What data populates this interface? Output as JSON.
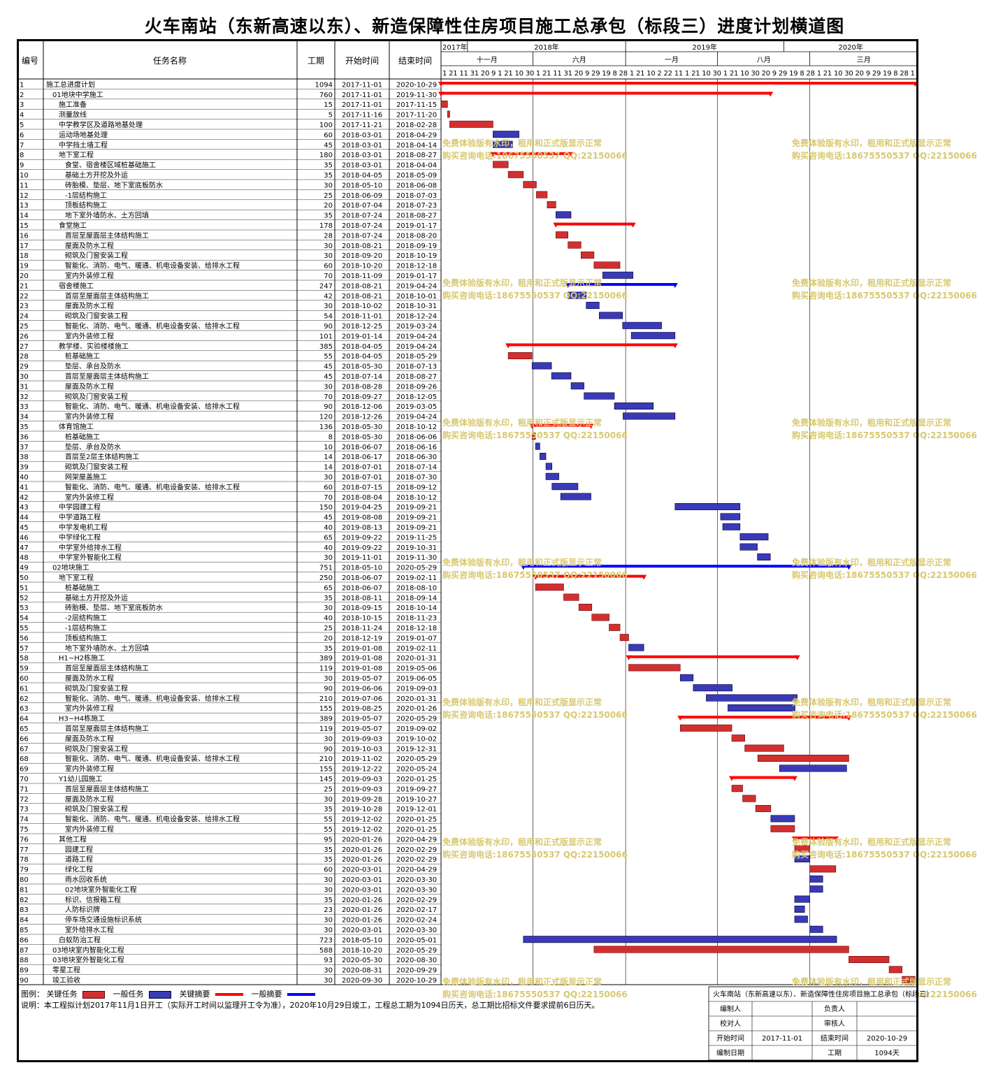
{
  "title": "火车南站（东新高速以东）、新造保障性住房项目施工总承包（标段三）进度计划横道图",
  "columns": {
    "id": "编号",
    "name": "任务名称",
    "duration": "工期",
    "start": "开始时间",
    "end": "结束时间"
  },
  "timeline": {
    "years": [
      {
        "label": "2017年",
        "date": "2017-11-01"
      },
      {
        "label": "2018年",
        "date": "2018-01-01"
      },
      {
        "label": "2019年",
        "date": "2019-01-01"
      },
      {
        "label": "2020年",
        "date": "2020-01-01"
      }
    ],
    "quarters": [
      {
        "label": "十一月",
        "date": "2017-11-01"
      },
      {
        "label": "六月",
        "date": "2018-06-01"
      },
      {
        "label": "一月",
        "date": "2019-01-01"
      },
      {
        "label": "八月",
        "date": "2019-08-01"
      },
      {
        "label": "三月",
        "date": "2020-03-01"
      }
    ],
    "day_ticks": "1 21 11 31 20 9 1 21 10 30 1 21 11 31 20 9 29 19 8 28 1 21 10 2 22 11 1 21 10 30 1 21 10 30 20 9 29 19 8 28 1 21 10 30 20 9 29 19 8 28 1"
  },
  "chart_data": {
    "type": "gantt",
    "x_range": [
      "2017-11-01",
      "2020-11-05"
    ],
    "series": [
      {
        "name": "关键任务",
        "color": "#d23030"
      },
      {
        "name": "一般任务",
        "color": "#3a3ab8"
      },
      {
        "name": "关键摘要",
        "color": "#ff0000"
      },
      {
        "name": "一般摘要",
        "color": "#0000ff"
      }
    ],
    "tasks": [
      [
        "1",
        "施工总进度计划",
        "1094",
        "2017-11-01",
        "2020-10-29",
        0,
        "s",
        "r"
      ],
      [
        "2",
        "01地块中学施工",
        "760",
        "2017-11-01",
        "2019-11-30",
        1,
        "s",
        "r"
      ],
      [
        "3",
        "施工准备",
        "15",
        "2017-11-01",
        "2017-11-15",
        2,
        "c",
        "r"
      ],
      [
        "4",
        "测量放线",
        "5",
        "2017-11-16",
        "2017-11-20",
        2,
        "c",
        "r"
      ],
      [
        "5",
        "中学教学区及道路地基处理",
        "100",
        "2017-11-21",
        "2018-02-28",
        2,
        "c",
        "r"
      ],
      [
        "6",
        "运动场地基处理",
        "60",
        "2018-03-01",
        "2018-04-29",
        2,
        "c",
        "b"
      ],
      [
        "7",
        "中学挡土墙工程",
        "45",
        "2018-03-01",
        "2018-04-14",
        2,
        "c",
        "b"
      ],
      [
        "8",
        "地下室工程",
        "180",
        "2018-03-01",
        "2018-08-27",
        2,
        "s",
        "r"
      ],
      [
        "9",
        "食堂、宿舍楼区域桩基础施工",
        "35",
        "2018-03-01",
        "2018-04-04",
        3,
        "c",
        "r"
      ],
      [
        "10",
        "基础土方开挖及外运",
        "35",
        "2018-04-05",
        "2018-05-09",
        3,
        "c",
        "r"
      ],
      [
        "11",
        "砖胎模、垫层、地下室底板防水",
        "30",
        "2018-05-10",
        "2018-06-08",
        3,
        "c",
        "r"
      ],
      [
        "12",
        "-1层结构施工",
        "25",
        "2018-06-09",
        "2018-07-03",
        3,
        "c",
        "r"
      ],
      [
        "13",
        "顶板结构施工",
        "20",
        "2018-07-04",
        "2018-07-23",
        3,
        "c",
        "r"
      ],
      [
        "14",
        "地下室外墙防水、土方回填",
        "35",
        "2018-07-24",
        "2018-08-27",
        3,
        "c",
        "b"
      ],
      [
        "15",
        "食堂施工",
        "178",
        "2018-07-24",
        "2019-01-17",
        2,
        "s",
        "r"
      ],
      [
        "16",
        "首层至屋面层主体结构施工",
        "28",
        "2018-07-24",
        "2018-08-20",
        3,
        "c",
        "r"
      ],
      [
        "17",
        "屋面及防水工程",
        "30",
        "2018-08-21",
        "2018-09-19",
        3,
        "c",
        "r"
      ],
      [
        "18",
        "砌筑及门窗安装工程",
        "30",
        "2018-09-20",
        "2018-10-19",
        3,
        "c",
        "r"
      ],
      [
        "19",
        "智能化、消防、电气、暖通、机电设备安装、给排水工程",
        "60",
        "2018-10-20",
        "2018-12-18",
        3,
        "c",
        "r"
      ],
      [
        "20",
        "室内外装修工程",
        "70",
        "2018-11-09",
        "2019-01-17",
        3,
        "c",
        "b"
      ],
      [
        "21",
        "宿舍楼施工",
        "247",
        "2018-08-21",
        "2019-04-24",
        2,
        "s",
        "b"
      ],
      [
        "22",
        "首层至屋面层主体结构施工",
        "42",
        "2018-08-21",
        "2018-10-01",
        3,
        "c",
        "b"
      ],
      [
        "23",
        "屋面及防水工程",
        "30",
        "2018-10-02",
        "2018-10-31",
        3,
        "c",
        "b"
      ],
      [
        "24",
        "砌筑及门窗安装工程",
        "54",
        "2018-11-01",
        "2018-12-24",
        3,
        "c",
        "b"
      ],
      [
        "25",
        "智能化、消防、电气、暖通、机电设备安装、给排水工程",
        "90",
        "2018-12-25",
        "2019-03-24",
        3,
        "c",
        "b"
      ],
      [
        "26",
        "室内外装修工程",
        "101",
        "2019-01-14",
        "2019-04-24",
        3,
        "c",
        "b"
      ],
      [
        "27",
        "教学楼、实验楼楼施工",
        "385",
        "2018-04-05",
        "2019-04-24",
        2,
        "s",
        "r"
      ],
      [
        "28",
        "桩基础施工",
        "55",
        "2018-04-05",
        "2018-05-29",
        3,
        "c",
        "r"
      ],
      [
        "29",
        "垫层、承台及防水",
        "45",
        "2018-05-30",
        "2018-07-13",
        3,
        "c",
        "b"
      ],
      [
        "30",
        "首层至屋面层主体结构施工",
        "45",
        "2018-07-14",
        "2018-08-27",
        3,
        "c",
        "b"
      ],
      [
        "31",
        "屋面及防水工程",
        "30",
        "2018-08-28",
        "2018-09-26",
        3,
        "c",
        "b"
      ],
      [
        "32",
        "砌筑及门窗安装工程",
        "70",
        "2018-09-27",
        "2018-12-05",
        3,
        "c",
        "b"
      ],
      [
        "33",
        "智能化、消防、电气、暖通、机电设备安装、给排水工程",
        "90",
        "2018-12-06",
        "2019-03-05",
        3,
        "c",
        "b"
      ],
      [
        "34",
        "室内外装修工程",
        "120",
        "2018-12-26",
        "2019-04-24",
        3,
        "c",
        "b"
      ],
      [
        "35",
        "体育馆施工",
        "136",
        "2018-05-30",
        "2018-10-12",
        2,
        "s",
        "r"
      ],
      [
        "36",
        "桩基础施工",
        "8",
        "2018-05-30",
        "2018-06-06",
        3,
        "c",
        "r"
      ],
      [
        "37",
        "垫层、承台及防水",
        "10",
        "2018-06-07",
        "2018-06-16",
        3,
        "c",
        "b"
      ],
      [
        "38",
        "首层至2层主体结构施工",
        "14",
        "2018-06-17",
        "2018-06-30",
        3,
        "c",
        "b"
      ],
      [
        "39",
        "砌筑及门窗安装工程",
        "14",
        "2018-07-01",
        "2018-07-14",
        3,
        "c",
        "b"
      ],
      [
        "40",
        "网架屋盖施工",
        "30",
        "2018-07-01",
        "2018-07-30",
        3,
        "c",
        "b"
      ],
      [
        "41",
        "智能化、消防、电气、暖通、机电设备安装、给排水工程",
        "60",
        "2018-07-15",
        "2018-09-12",
        3,
        "c",
        "b"
      ],
      [
        "42",
        "室内外装修工程",
        "70",
        "2018-08-04",
        "2018-10-12",
        3,
        "c",
        "b"
      ],
      [
        "43",
        "中学园建工程",
        "150",
        "2019-04-25",
        "2019-09-21",
        2,
        "c",
        "b"
      ],
      [
        "44",
        "中学道路工程",
        "45",
        "2019-08-08",
        "2019-09-21",
        2,
        "c",
        "b"
      ],
      [
        "45",
        "中学发电机工程",
        "40",
        "2019-08-13",
        "2019-09-21",
        2,
        "c",
        "b"
      ],
      [
        "46",
        "中学绿化工程",
        "65",
        "2019-09-22",
        "2019-11-25",
        2,
        "c",
        "b"
      ],
      [
        "47",
        "中学室外给排水工程",
        "40",
        "2019-09-22",
        "2019-10-31",
        2,
        "c",
        "b"
      ],
      [
        "48",
        "中学室外智能化工程",
        "30",
        "2019-11-01",
        "2019-11-30",
        2,
        "c",
        "b"
      ],
      [
        "49",
        "02地块施工",
        "751",
        "2018-05-10",
        "2020-05-29",
        1,
        "s",
        "b"
      ],
      [
        "50",
        "地下室工程",
        "250",
        "2018-06-07",
        "2019-02-11",
        2,
        "s",
        "r"
      ],
      [
        "51",
        "桩基础施工",
        "65",
        "2018-06-07",
        "2018-08-10",
        3,
        "c",
        "r"
      ],
      [
        "52",
        "基础土方开挖及外运",
        "35",
        "2018-08-11",
        "2018-09-14",
        3,
        "c",
        "r"
      ],
      [
        "53",
        "砖胎模、垫层、地下室底板防水",
        "30",
        "2018-09-15",
        "2018-10-14",
        3,
        "c",
        "r"
      ],
      [
        "54",
        "-2层结构施工",
        "40",
        "2018-10-15",
        "2018-11-23",
        3,
        "c",
        "r"
      ],
      [
        "55",
        "-1层结构施工",
        "25",
        "2018-11-24",
        "2018-12-18",
        3,
        "c",
        "r"
      ],
      [
        "56",
        "顶板结构施工",
        "20",
        "2018-12-19",
        "2019-01-07",
        3,
        "c",
        "r"
      ],
      [
        "57",
        "地下室外墙防水、土方回填",
        "35",
        "2019-01-08",
        "2019-02-11",
        3,
        "c",
        "b"
      ],
      [
        "58",
        "H1~H2栋施工",
        "389",
        "2019-01-08",
        "2020-01-31",
        2,
        "s",
        "r"
      ],
      [
        "59",
        "首层至屋面层主体结构施工",
        "119",
        "2019-01-08",
        "2019-05-06",
        3,
        "c",
        "r"
      ],
      [
        "60",
        "屋面及防水工程",
        "30",
        "2019-05-07",
        "2019-06-05",
        3,
        "c",
        "b"
      ],
      [
        "61",
        "砌筑及门窗安装工程",
        "90",
        "2019-06-06",
        "2019-09-03",
        3,
        "c",
        "b"
      ],
      [
        "62",
        "智能化、消防、电气、暖通、机电设备安装、给排水工程",
        "210",
        "2019-07-06",
        "2020-01-31",
        3,
        "c",
        "b"
      ],
      [
        "63",
        "室内外装修工程",
        "155",
        "2019-08-25",
        "2020-01-26",
        3,
        "c",
        "b"
      ],
      [
        "64",
        "H3~H4栋施工",
        "389",
        "2019-05-07",
        "2020-05-29",
        2,
        "s",
        "r"
      ],
      [
        "65",
        "首层至屋面层主体结构施工",
        "119",
        "2019-05-07",
        "2019-09-02",
        3,
        "c",
        "r"
      ],
      [
        "66",
        "屋面及防水工程",
        "30",
        "2019-09-03",
        "2019-10-02",
        3,
        "c",
        "r"
      ],
      [
        "67",
        "砌筑及门窗安装工程",
        "90",
        "2019-10-03",
        "2019-12-31",
        3,
        "c",
        "r"
      ],
      [
        "68",
        "智能化、消防、电气、暖通、机电设备安装、给排水工程",
        "210",
        "2019-11-02",
        "2020-05-29",
        3,
        "c",
        "r"
      ],
      [
        "69",
        "室内外装修工程",
        "155",
        "2019-12-22",
        "2020-05-24",
        3,
        "c",
        "b"
      ],
      [
        "70",
        "Y1幼儿园施工",
        "145",
        "2019-09-03",
        "2020-01-25",
        2,
        "s",
        "r"
      ],
      [
        "71",
        "首层至屋面层主体结构施工",
        "25",
        "2019-09-03",
        "2019-09-27",
        3,
        "c",
        "r"
      ],
      [
        "72",
        "屋面及防水工程",
        "30",
        "2019-09-28",
        "2019-10-27",
        3,
        "c",
        "r"
      ],
      [
        "73",
        "砌筑及门窗安装工程",
        "35",
        "2019-10-28",
        "2019-12-01",
        3,
        "c",
        "r"
      ],
      [
        "74",
        "智能化、消防、电气、暖通、机电设备安装、给排水工程",
        "55",
        "2019-12-02",
        "2020-01-25",
        3,
        "c",
        "b"
      ],
      [
        "75",
        "室内外装修工程",
        "55",
        "2019-12-02",
        "2020-01-25",
        3,
        "c",
        "r"
      ],
      [
        "76",
        "其他工程",
        "95",
        "2020-01-26",
        "2020-04-29",
        2,
        "s",
        "r"
      ],
      [
        "77",
        "园建工程",
        "35",
        "2020-01-26",
        "2020-02-29",
        3,
        "c",
        "r"
      ],
      [
        "78",
        "道路工程",
        "35",
        "2020-01-26",
        "2020-02-29",
        3,
        "c",
        "b"
      ],
      [
        "79",
        "绿化工程",
        "60",
        "2020-03-01",
        "2020-04-29",
        3,
        "c",
        "r"
      ],
      [
        "80",
        "雨水回收系统",
        "30",
        "2020-03-01",
        "2020-03-30",
        3,
        "c",
        "b"
      ],
      [
        "81",
        "02地块室外智能化工程",
        "30",
        "2020-03-01",
        "2020-03-30",
        3,
        "c",
        "b"
      ],
      [
        "82",
        "标识、信报箱工程",
        "35",
        "2020-01-26",
        "2020-02-29",
        3,
        "c",
        "b"
      ],
      [
        "83",
        "人防标识牌",
        "23",
        "2020-01-26",
        "2020-02-17",
        3,
        "c",
        "b"
      ],
      [
        "84",
        "停车场交通设施标识系统",
        "30",
        "2020-01-26",
        "2020-02-24",
        3,
        "c",
        "b"
      ],
      [
        "85",
        "室外给排水工程",
        "30",
        "2020-03-01",
        "2020-03-30",
        3,
        "c",
        "b"
      ],
      [
        "86",
        "白蚁防治工程",
        "723",
        "2018-05-10",
        "2020-05-01",
        2,
        "c",
        "b"
      ],
      [
        "87",
        "03地块室内智能化工程",
        "588",
        "2018-10-20",
        "2020-05-29",
        1,
        "c",
        "r"
      ],
      [
        "88",
        "03地块室外智能化工程",
        "93",
        "2020-05-30",
        "2020-08-30",
        1,
        "c",
        "r"
      ],
      [
        "89",
        "零星工程",
        "30",
        "2020-08-31",
        "2020-09-29",
        1,
        "c",
        "r"
      ],
      [
        "90",
        "竣工验收",
        "30",
        "2020-09-30",
        "2020-10-29",
        1,
        "c",
        "r"
      ]
    ]
  },
  "legend": {
    "prefix": "图例：",
    "items": [
      "关键任务",
      "一般任务",
      "关键摘要",
      "一般摘要"
    ]
  },
  "notes": "说明：本工程拟计划2017年11月1日开工（实际开工时间以监理开工令为准），2020年10月29日竣工，工程总工期为1094日历天，总工期比招标文件要求提前6日历天。",
  "watermark": {
    "line1": "免费体验版有水印，租用和正式版显示正常",
    "line2": "购买咨询电话:18675550537 QQ:22150066"
  },
  "info_box": {
    "project": "火车南站（东新高速以东）、新造保障性住房项目施工总承包（标段三）",
    "editor_label": "编制人",
    "manager_label": "负责人",
    "checker_label": "校对人",
    "reviewer_label": "审核人",
    "start_label": "开始时间",
    "start_value": "2017-11-01",
    "end_label": "结束时间",
    "end_value": "2020-10-29",
    "date_label": "编制日期",
    "duration_label": "工期",
    "duration_value": "1094天"
  }
}
